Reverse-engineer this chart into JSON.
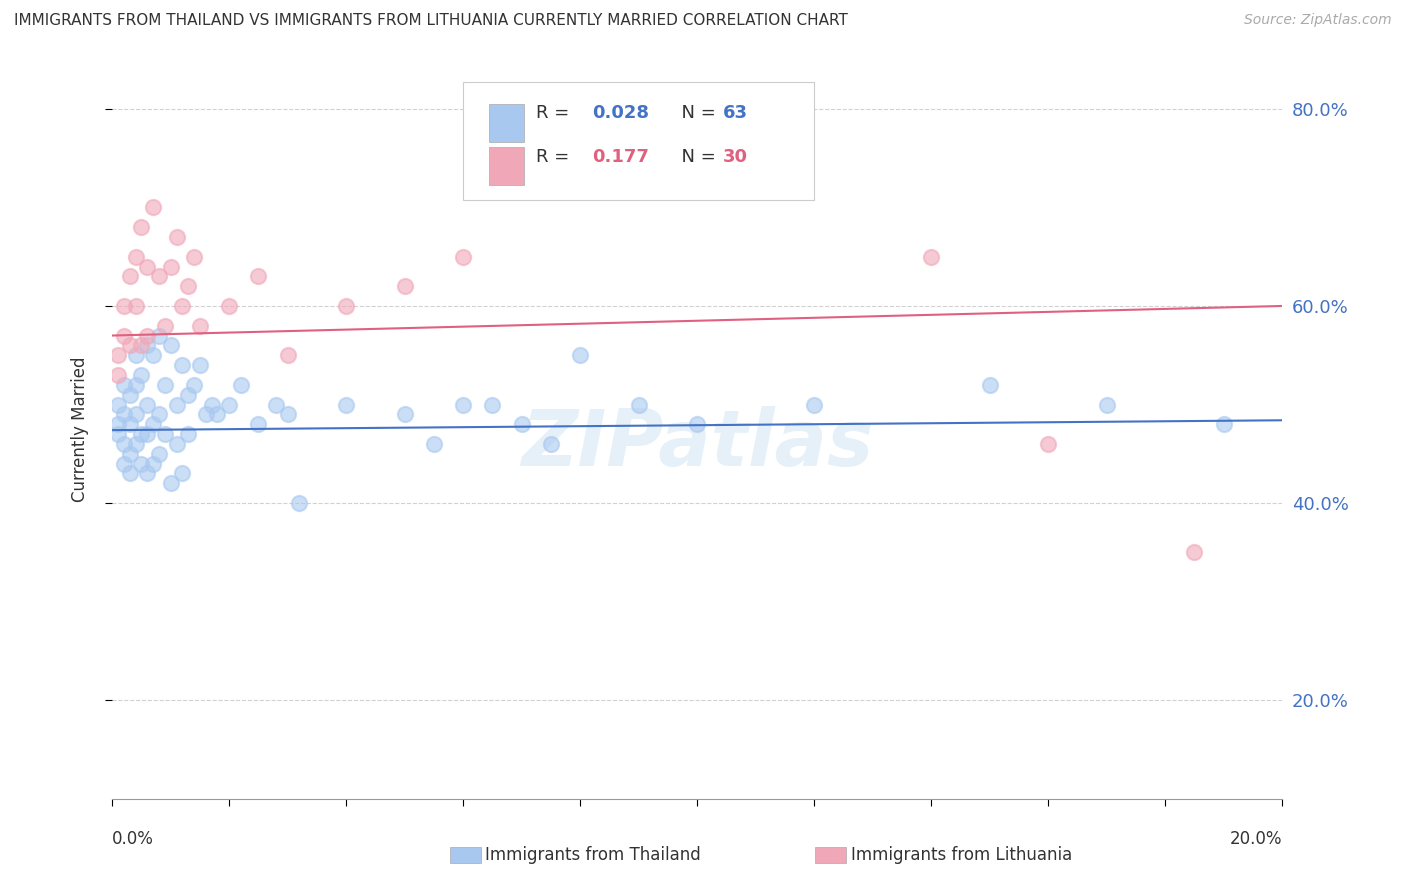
{
  "title": "IMMIGRANTS FROM THAILAND VS IMMIGRANTS FROM LITHUANIA CURRENTLY MARRIED CORRELATION CHART",
  "source_text": "Source: ZipAtlas.com",
  "ylabel": "Currently Married",
  "thailand_color": "#a8c8f0",
  "lithuania_color": "#f0a8b8",
  "thailand_line_color": "#4472c4",
  "lithuania_line_color": "#e06080",
  "grid_color": "#cccccc",
  "R_thailand": 0.028,
  "N_thailand": 63,
  "R_lithuania": 0.177,
  "N_lithuania": 30,
  "xlim": [
    0.0,
    0.2
  ],
  "ylim": [
    0.1,
    0.85
  ],
  "yticks": [
    0.2,
    0.4,
    0.6,
    0.8
  ],
  "ytick_labels": [
    "20.0%",
    "40.0%",
    "60.0%",
    "80.0%"
  ],
  "thailand_x": [
    0.001,
    0.001,
    0.001,
    0.002,
    0.002,
    0.002,
    0.002,
    0.003,
    0.003,
    0.003,
    0.003,
    0.004,
    0.004,
    0.004,
    0.004,
    0.005,
    0.005,
    0.005,
    0.006,
    0.006,
    0.006,
    0.006,
    0.007,
    0.007,
    0.007,
    0.008,
    0.008,
    0.008,
    0.009,
    0.009,
    0.01,
    0.01,
    0.011,
    0.011,
    0.012,
    0.012,
    0.013,
    0.013,
    0.014,
    0.015,
    0.016,
    0.017,
    0.018,
    0.02,
    0.022,
    0.025,
    0.028,
    0.03,
    0.032,
    0.04,
    0.05,
    0.055,
    0.06,
    0.065,
    0.07,
    0.075,
    0.08,
    0.09,
    0.1,
    0.12,
    0.15,
    0.17,
    0.19
  ],
  "thailand_y": [
    0.47,
    0.48,
    0.5,
    0.46,
    0.49,
    0.52,
    0.44,
    0.48,
    0.51,
    0.45,
    0.43,
    0.55,
    0.49,
    0.46,
    0.52,
    0.53,
    0.47,
    0.44,
    0.56,
    0.5,
    0.47,
    0.43,
    0.55,
    0.48,
    0.44,
    0.57,
    0.49,
    0.45,
    0.52,
    0.47,
    0.56,
    0.42,
    0.5,
    0.46,
    0.54,
    0.43,
    0.51,
    0.47,
    0.52,
    0.54,
    0.49,
    0.5,
    0.49,
    0.5,
    0.52,
    0.48,
    0.5,
    0.49,
    0.4,
    0.5,
    0.49,
    0.46,
    0.5,
    0.5,
    0.48,
    0.46,
    0.55,
    0.5,
    0.48,
    0.5,
    0.52,
    0.5,
    0.48
  ],
  "lithuania_x": [
    0.001,
    0.001,
    0.002,
    0.002,
    0.003,
    0.003,
    0.004,
    0.004,
    0.005,
    0.005,
    0.006,
    0.006,
    0.007,
    0.008,
    0.009,
    0.01,
    0.011,
    0.012,
    0.013,
    0.014,
    0.015,
    0.02,
    0.025,
    0.03,
    0.04,
    0.05,
    0.06,
    0.14,
    0.16,
    0.185
  ],
  "lithuania_y": [
    0.55,
    0.53,
    0.6,
    0.57,
    0.63,
    0.56,
    0.65,
    0.6,
    0.68,
    0.56,
    0.64,
    0.57,
    0.7,
    0.63,
    0.58,
    0.64,
    0.67,
    0.6,
    0.62,
    0.65,
    0.58,
    0.6,
    0.63,
    0.55,
    0.6,
    0.62,
    0.65,
    0.65,
    0.46,
    0.35
  ]
}
